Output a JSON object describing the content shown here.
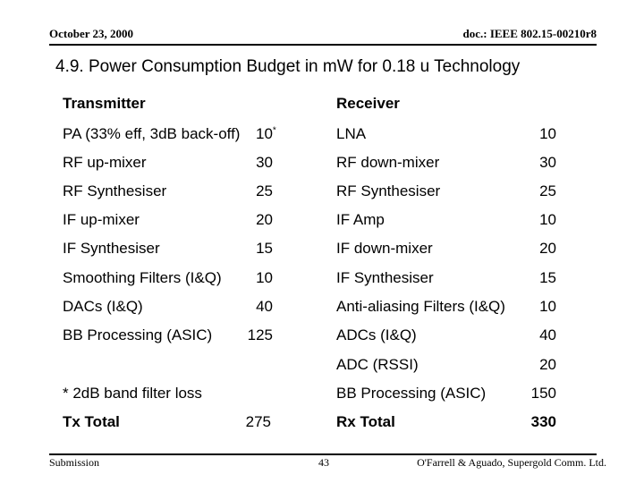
{
  "header": {
    "date": "October 23, 2000",
    "doc_id": "doc.: IEEE 802.15-00210r8"
  },
  "slide": {
    "title": "4.9. Power Consumption Budget in mW for 0.18 u Technology"
  },
  "transmitter": {
    "heading": "Transmitter",
    "rows": [
      {
        "label": "PA (33% eff, 3dB back-off)",
        "value": "10",
        "sup": "*"
      },
      {
        "label": "RF up-mixer",
        "value": "30"
      },
      {
        "label": "RF Synthesiser",
        "value": "25"
      },
      {
        "label": "IF up-mixer",
        "value": "20"
      },
      {
        "label": "IF Synthesiser",
        "value": "15"
      },
      {
        "label": "Smoothing Filters (I&Q)",
        "value": "10"
      },
      {
        "label": "DACs (I&Q)",
        "value": "40"
      },
      {
        "label": "BB Processing (ASIC)",
        "value": "125"
      }
    ],
    "footnote": "* 2dB band filter loss",
    "total_label": "Tx Total",
    "total_value": "275"
  },
  "receiver": {
    "heading": "Receiver",
    "rows": [
      {
        "label": "LNA",
        "value": "10"
      },
      {
        "label": "RF down-mixer",
        "value": "30"
      },
      {
        "label": "RF Synthesiser",
        "value": "25"
      },
      {
        "label": "IF Amp",
        "value": "10"
      },
      {
        "label": "IF down-mixer",
        "value": "20"
      },
      {
        "label": "IF Synthesiser",
        "value": "15"
      },
      {
        "label": "Anti-aliasing Filters (I&Q)",
        "value": "10"
      },
      {
        "label": "ADCs (I&Q)",
        "value": "40"
      },
      {
        "label": "ADC (RSSI)",
        "value": "20"
      },
      {
        "label": "BB Processing (ASIC)",
        "value": "150"
      }
    ],
    "total_label": "Rx Total",
    "total_value": "330"
  },
  "footer": {
    "left": "Submission",
    "page_number": "43",
    "right": "O'Farrell & Aguado, Supergold Comm. Ltd."
  }
}
